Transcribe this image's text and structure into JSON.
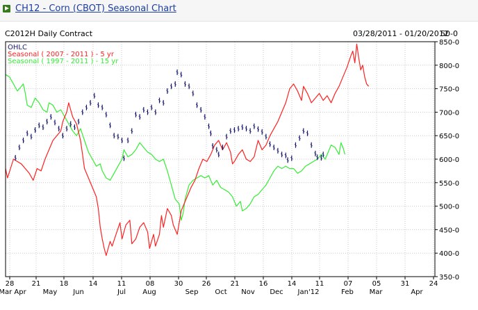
{
  "page": {
    "title": "CH12 - Corn (CBOT) Seasonal Chart"
  },
  "chart_data": {
    "type": "line",
    "title": "C2012H Daily Contract",
    "date_range": "03/28/2011 - 01/20/2012",
    "price_step": "50-0",
    "ylim": [
      350,
      850
    ],
    "y_ticks": [
      "850-0",
      "800-0",
      "750-0",
      "700-0",
      "650-0",
      "600-0",
      "550-0",
      "500-0",
      "450-0",
      "400-0",
      "350-0"
    ],
    "x_tick_days": [
      "28",
      "21",
      "18",
      "14",
      "11",
      "08",
      "30",
      "26",
      "21",
      "16",
      "14",
      "11",
      "07",
      "05",
      "31",
      "24"
    ],
    "x_tick_months": [
      "Mar Apr",
      "May",
      "Jun",
      "Jul",
      "Aug",
      "Sep",
      "Oct",
      "Nov",
      "Dec",
      "Jan'12",
      "Feb",
      "Mar",
      "Apr"
    ],
    "legend": {
      "ohlc": "OHLC",
      "seasonal5": "Seasonal ( 2007 - 2011 ) - 5 yr",
      "seasonal15": "Seasonal ( 1997 - 2011 ) - 15 yr"
    },
    "colors": {
      "ohlc": "#1a1a6e",
      "seasonal5": "#ff2020",
      "seasonal15": "#33ee33",
      "grid": "#c8c8c8"
    },
    "series": [
      {
        "name": "OHLC",
        "points": [
          [
            0,
            603
          ],
          [
            4,
            625
          ],
          [
            8,
            640
          ],
          [
            12,
            655
          ],
          [
            16,
            648
          ],
          [
            20,
            662
          ],
          [
            24,
            672
          ],
          [
            28,
            668
          ],
          [
            32,
            680
          ],
          [
            36,
            690
          ],
          [
            40,
            678
          ],
          [
            44,
            665
          ],
          [
            48,
            650
          ],
          [
            52,
            665
          ],
          [
            56,
            675
          ],
          [
            60,
            668
          ],
          [
            64,
            680
          ],
          [
            68,
            700
          ],
          [
            72,
            710
          ],
          [
            76,
            720
          ],
          [
            80,
            735
          ],
          [
            84,
            715
          ],
          [
            88,
            710
          ],
          [
            92,
            695
          ],
          [
            96,
            672
          ],
          [
            100,
            650
          ],
          [
            104,
            648
          ],
          [
            108,
            640
          ],
          [
            110,
            602
          ],
          [
            114,
            640
          ],
          [
            118,
            660
          ],
          [
            122,
            695
          ],
          [
            126,
            690
          ],
          [
            130,
            705
          ],
          [
            134,
            700
          ],
          [
            138,
            710
          ],
          [
            142,
            700
          ],
          [
            146,
            725
          ],
          [
            150,
            720
          ],
          [
            154,
            745
          ],
          [
            158,
            755
          ],
          [
            162,
            760
          ],
          [
            164,
            785
          ],
          [
            168,
            780
          ],
          [
            172,
            760
          ],
          [
            176,
            755
          ],
          [
            180,
            740
          ],
          [
            184,
            715
          ],
          [
            188,
            705
          ],
          [
            192,
            690
          ],
          [
            196,
            670
          ],
          [
            198,
            655
          ],
          [
            200,
            628
          ],
          [
            204,
            620
          ],
          [
            206,
            610
          ],
          [
            210,
            625
          ],
          [
            214,
            648
          ],
          [
            218,
            660
          ],
          [
            222,
            662
          ],
          [
            226,
            665
          ],
          [
            230,
            668
          ],
          [
            234,
            665
          ],
          [
            238,
            660
          ],
          [
            242,
            670
          ],
          [
            246,
            664
          ],
          [
            250,
            658
          ],
          [
            254,
            648
          ],
          [
            258,
            632
          ],
          [
            262,
            625
          ],
          [
            266,
            618
          ],
          [
            270,
            610
          ],
          [
            274,
            608
          ],
          [
            276,
            598
          ],
          [
            280,
            602
          ],
          [
            284,
            630
          ],
          [
            288,
            645
          ],
          [
            292,
            660
          ],
          [
            296,
            655
          ],
          [
            300,
            630
          ],
          [
            304,
            612
          ],
          [
            306,
            604
          ],
          [
            310,
            603
          ],
          [
            312,
            610
          ]
        ]
      },
      {
        "name": "Seasonal ( 2007 - 2011 ) - 5 yr",
        "points": [
          [
            -10,
            580
          ],
          [
            -8,
            560
          ],
          [
            -5,
            580
          ],
          [
            -2,
            600
          ],
          [
            2,
            595
          ],
          [
            6,
            590
          ],
          [
            10,
            580
          ],
          [
            14,
            570
          ],
          [
            18,
            555
          ],
          [
            22,
            580
          ],
          [
            26,
            575
          ],
          [
            30,
            600
          ],
          [
            34,
            620
          ],
          [
            38,
            640
          ],
          [
            42,
            650
          ],
          [
            46,
            660
          ],
          [
            48,
            680
          ],
          [
            52,
            700
          ],
          [
            54,
            720
          ],
          [
            56,
            705
          ],
          [
            58,
            690
          ],
          [
            62,
            675
          ],
          [
            66,
            640
          ],
          [
            68,
            610
          ],
          [
            70,
            580
          ],
          [
            74,
            560
          ],
          [
            78,
            540
          ],
          [
            82,
            520
          ],
          [
            84,
            495
          ],
          [
            86,
            455
          ],
          [
            88,
            430
          ],
          [
            90,
            410
          ],
          [
            92,
            395
          ],
          [
            96,
            425
          ],
          [
            98,
            415
          ],
          [
            102,
            440
          ],
          [
            106,
            465
          ],
          [
            108,
            430
          ],
          [
            112,
            460
          ],
          [
            116,
            470
          ],
          [
            118,
            420
          ],
          [
            122,
            430
          ],
          [
            126,
            455
          ],
          [
            130,
            465
          ],
          [
            134,
            445
          ],
          [
            136,
            410
          ],
          [
            140,
            440
          ],
          [
            142,
            415
          ],
          [
            146,
            440
          ],
          [
            148,
            480
          ],
          [
            150,
            455
          ],
          [
            154,
            495
          ],
          [
            158,
            480
          ],
          [
            160,
            460
          ],
          [
            164,
            440
          ],
          [
            168,
            490
          ],
          [
            170,
            500
          ],
          [
            174,
            520
          ],
          [
            178,
            540
          ],
          [
            182,
            555
          ],
          [
            186,
            580
          ],
          [
            190,
            600
          ],
          [
            194,
            595
          ],
          [
            198,
            610
          ],
          [
            202,
            630
          ],
          [
            206,
            640
          ],
          [
            210,
            620
          ],
          [
            214,
            635
          ],
          [
            218,
            615
          ],
          [
            220,
            590
          ],
          [
            222,
            595
          ],
          [
            226,
            610
          ],
          [
            230,
            620
          ],
          [
            234,
            600
          ],
          [
            238,
            595
          ],
          [
            242,
            605
          ],
          [
            246,
            640
          ],
          [
            250,
            620
          ],
          [
            254,
            630
          ],
          [
            258,
            650
          ],
          [
            262,
            665
          ],
          [
            266,
            680
          ],
          [
            270,
            700
          ],
          [
            274,
            720
          ],
          [
            278,
            750
          ],
          [
            282,
            760
          ],
          [
            286,
            745
          ],
          [
            290,
            725
          ],
          [
            292,
            755
          ],
          [
            296,
            740
          ],
          [
            300,
            720
          ],
          [
            304,
            730
          ],
          [
            308,
            740
          ],
          [
            312,
            725
          ],
          [
            316,
            735
          ],
          [
            320,
            720
          ],
          [
            324,
            740
          ],
          [
            328,
            755
          ],
          [
            332,
            775
          ],
          [
            336,
            795
          ],
          [
            340,
            820
          ],
          [
            342,
            830
          ],
          [
            344,
            805
          ],
          [
            346,
            845
          ],
          [
            348,
            815
          ],
          [
            350,
            790
          ],
          [
            352,
            800
          ],
          [
            354,
            775
          ],
          [
            356,
            760
          ],
          [
            358,
            755
          ]
        ]
      },
      {
        "name": "Seasonal ( 1997 - 2011 ) - 15 yr",
        "points": [
          [
            -10,
            780
          ],
          [
            -6,
            775
          ],
          [
            -2,
            760
          ],
          [
            2,
            745
          ],
          [
            6,
            755
          ],
          [
            8,
            760
          ],
          [
            10,
            740
          ],
          [
            12,
            715
          ],
          [
            16,
            710
          ],
          [
            20,
            730
          ],
          [
            24,
            720
          ],
          [
            28,
            705
          ],
          [
            32,
            700
          ],
          [
            34,
            720
          ],
          [
            38,
            715
          ],
          [
            42,
            700
          ],
          [
            46,
            705
          ],
          [
            50,
            690
          ],
          [
            54,
            675
          ],
          [
            58,
            660
          ],
          [
            62,
            650
          ],
          [
            66,
            665
          ],
          [
            70,
            640
          ],
          [
            74,
            615
          ],
          [
            78,
            600
          ],
          [
            82,
            585
          ],
          [
            86,
            590
          ],
          [
            88,
            575
          ],
          [
            92,
            560
          ],
          [
            96,
            555
          ],
          [
            100,
            570
          ],
          [
            104,
            585
          ],
          [
            108,
            600
          ],
          [
            110,
            620
          ],
          [
            114,
            605
          ],
          [
            118,
            610
          ],
          [
            122,
            620
          ],
          [
            126,
            635
          ],
          [
            130,
            625
          ],
          [
            134,
            615
          ],
          [
            138,
            610
          ],
          [
            142,
            600
          ],
          [
            146,
            595
          ],
          [
            150,
            600
          ],
          [
            154,
            575
          ],
          [
            158,
            545
          ],
          [
            162,
            515
          ],
          [
            166,
            505
          ],
          [
            168,
            470
          ],
          [
            170,
            485
          ],
          [
            172,
            515
          ],
          [
            176,
            545
          ],
          [
            180,
            555
          ],
          [
            184,
            560
          ],
          [
            188,
            565
          ],
          [
            192,
            560
          ],
          [
            196,
            565
          ],
          [
            200,
            545
          ],
          [
            204,
            555
          ],
          [
            208,
            540
          ],
          [
            212,
            535
          ],
          [
            216,
            530
          ],
          [
            220,
            520
          ],
          [
            224,
            500
          ],
          [
            228,
            510
          ],
          [
            230,
            490
          ],
          [
            234,
            495
          ],
          [
            238,
            505
          ],
          [
            242,
            520
          ],
          [
            246,
            525
          ],
          [
            250,
            535
          ],
          [
            254,
            545
          ],
          [
            258,
            560
          ],
          [
            262,
            575
          ],
          [
            266,
            585
          ],
          [
            270,
            580
          ],
          [
            274,
            585
          ],
          [
            278,
            580
          ],
          [
            282,
            580
          ],
          [
            286,
            570
          ],
          [
            290,
            575
          ],
          [
            294,
            585
          ],
          [
            298,
            590
          ],
          [
            302,
            595
          ],
          [
            306,
            600
          ],
          [
            310,
            610
          ],
          [
            314,
            600
          ],
          [
            318,
            620
          ],
          [
            320,
            630
          ],
          [
            324,
            625
          ],
          [
            328,
            610
          ],
          [
            330,
            635
          ],
          [
            332,
            625
          ],
          [
            334,
            610
          ]
        ]
      }
    ]
  }
}
